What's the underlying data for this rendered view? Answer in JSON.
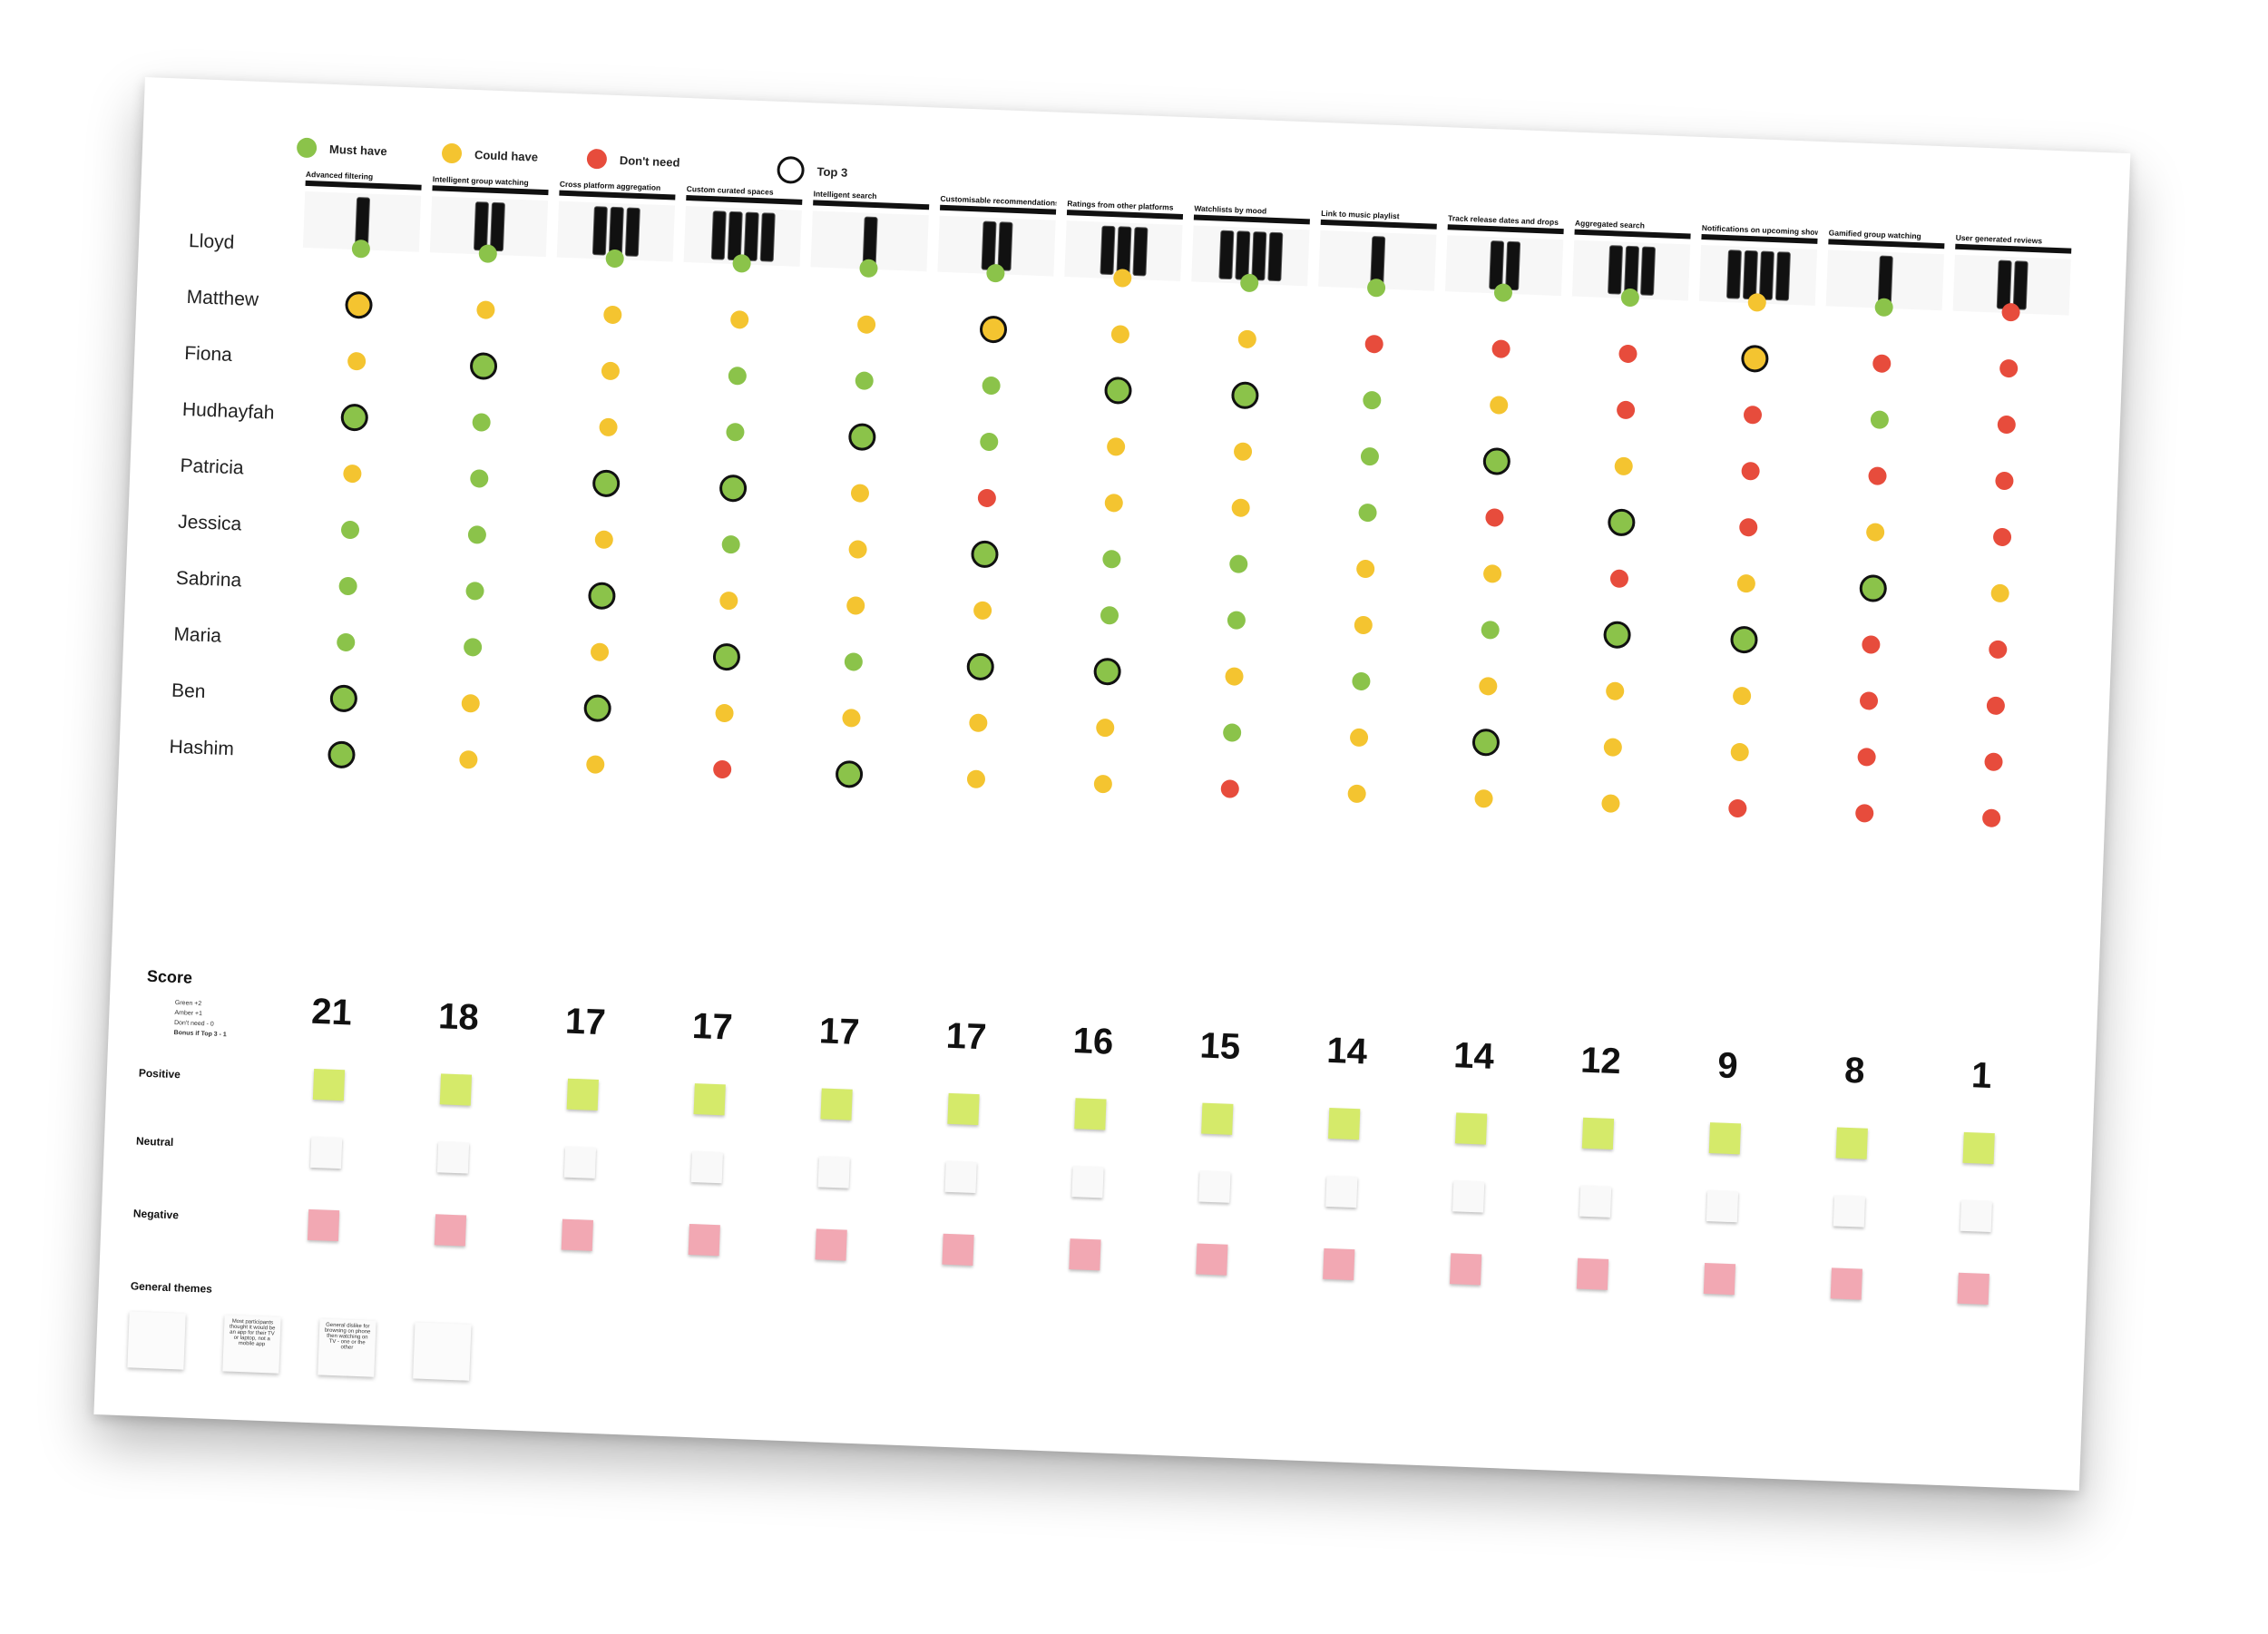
{
  "legend": [
    {
      "label": "Must have",
      "color": "#8bc34a"
    },
    {
      "label": "Could have",
      "color": "#f4c430"
    },
    {
      "label": "Don't need",
      "color": "#e74c3c"
    },
    {
      "label": "Top 3",
      "color": "#ffffff"
    }
  ],
  "features": [
    "Advanced filtering",
    "Intelligent group watching",
    "Cross platform aggregation",
    "Custom curated spaces",
    "Intelligent search",
    "Customisable recommendations",
    "Ratings from other platforms",
    "Watchlists by mood",
    "Link to music playlist",
    "Track release dates and drops",
    "Aggregated search",
    "Notifications on upcoming shows",
    "Gamified group watching",
    "User generated reviews"
  ],
  "participants": [
    "Lloyd",
    "Matthew",
    "Fiona",
    "Hudhayfah",
    "Patricia",
    "Jessica",
    "Sabrina",
    "Maria",
    "Ben",
    "Hashim"
  ],
  "ratings": [
    [
      "g",
      "g",
      "g",
      "g",
      "g",
      "g",
      "a",
      "g",
      "g",
      "g",
      "g",
      "a",
      "g",
      "r"
    ],
    [
      "a*",
      "a",
      "a",
      "a",
      "a",
      "a*",
      "a",
      "a",
      "r",
      "r",
      "r",
      "a*",
      "r",
      "r"
    ],
    [
      "a",
      "g*",
      "a",
      "g",
      "g",
      "g",
      "g*",
      "g*",
      "g",
      "a",
      "r",
      "r",
      "g",
      "r"
    ],
    [
      "g*",
      "g",
      "a",
      "g",
      "g*",
      "g",
      "a",
      "a",
      "g",
      "g*",
      "a",
      "r",
      "r",
      "r"
    ],
    [
      "a",
      "g",
      "g*",
      "g*",
      "a",
      "r",
      "a",
      "a",
      "g",
      "r",
      "g*",
      "r",
      "a",
      "r"
    ],
    [
      "g",
      "g",
      "a",
      "g",
      "a",
      "g*",
      "g",
      "g",
      "a",
      "a",
      "r",
      "a",
      "g*",
      "a"
    ],
    [
      "g",
      "g",
      "g*",
      "a",
      "a",
      "a",
      "g",
      "g",
      "a",
      "g",
      "g*",
      "g*",
      "r",
      "r"
    ],
    [
      "g",
      "g",
      "a",
      "g*",
      "g",
      "g*",
      "g*",
      "a",
      "g",
      "a",
      "a",
      "a",
      "r",
      "r"
    ],
    [
      "g*",
      "a",
      "g*",
      "a",
      "a",
      "a",
      "a",
      "g",
      "a",
      "g*",
      "a",
      "a",
      "r",
      "r"
    ],
    [
      "g*",
      "a",
      "a",
      "r",
      "g*",
      "a",
      "a",
      "r",
      "a",
      "a",
      "a",
      "r",
      "r",
      "r"
    ]
  ],
  "scores": [
    "21",
    "18",
    "17",
    "17",
    "17",
    "17",
    "16",
    "15",
    "14",
    "14",
    "12",
    "9",
    "8",
    "1"
  ],
  "labels": {
    "score": "Score",
    "score_info_1": "Green +2",
    "score_info_2": "Amber +1",
    "score_info_3": "Don't need - 0",
    "score_info_4": "Bonus if Top 3 - 1",
    "positive": "Positive",
    "neutral": "Neutral",
    "negative": "Negative",
    "general_themes": "General themes"
  },
  "themes": [
    "",
    "Most participants thought it would be an app for their TV or laptop, not a mobile app",
    "General dislike for browsing on phone then watching on TV - one or the other",
    ""
  ],
  "colors": {
    "g": "#8bc34a",
    "a": "#f4c430",
    "r": "#e74c3c"
  }
}
